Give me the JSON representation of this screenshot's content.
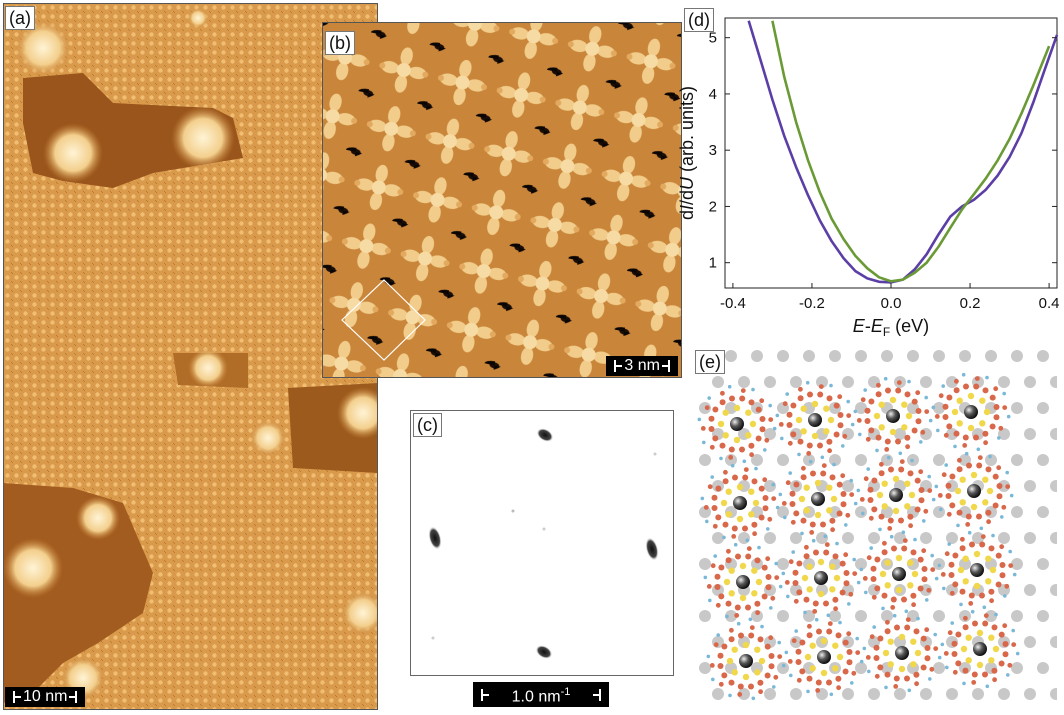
{
  "panels": {
    "a": {
      "label": "(a)",
      "scale": "10 nm"
    },
    "b": {
      "label": "(b)",
      "scale": "3 nm"
    },
    "c": {
      "label": "(c)",
      "scale": "1.0 nm",
      "scale_sup": "-1"
    },
    "d": {
      "label": "(d)"
    },
    "e": {
      "label": "(e)"
    }
  },
  "colors": {
    "stm_light": "#e7ac5c",
    "stm_mid": "#c98539",
    "stm_dark": "#8a4c16",
    "spot": "#1a1a1a",
    "curve_purple": "#5b3fa6",
    "curve_green": "#6a9a35",
    "atom_red": "#d9674a",
    "atom_yellow": "#f0d84a",
    "atom_grey": "#c8c8c8",
    "atom_blue": "#7ab8d8"
  },
  "chart_data": {
    "type": "line",
    "title": "",
    "xlabel_parts": [
      "E",
      "-",
      "E",
      "F",
      " (eV)"
    ],
    "ylabel_parts": [
      "d",
      "I",
      "/d",
      "U",
      " (arb. units)"
    ],
    "xlim": [
      -0.42,
      0.42
    ],
    "ylim": [
      0.55,
      5.35
    ],
    "xticks": [
      -0.4,
      -0.2,
      0.0,
      0.2,
      0.4
    ],
    "xtick_labels": [
      "-0.4",
      "-0.2",
      "0.0",
      "0.2",
      "0.4"
    ],
    "yticks": [
      1,
      2,
      3,
      4,
      5
    ],
    "ytick_labels": [
      "1",
      "2",
      "3",
      "4",
      "5"
    ],
    "series": [
      {
        "name": "purple",
        "x": [
          -0.36,
          -0.33,
          -0.3,
          -0.27,
          -0.24,
          -0.21,
          -0.18,
          -0.15,
          -0.12,
          -0.09,
          -0.06,
          -0.03,
          0.0,
          0.03,
          0.06,
          0.09,
          0.12,
          0.15,
          0.18,
          0.21,
          0.24,
          0.27,
          0.3,
          0.33,
          0.36,
          0.39,
          0.42
        ],
        "y": [
          5.3,
          4.6,
          3.9,
          3.25,
          2.7,
          2.2,
          1.75,
          1.38,
          1.08,
          0.85,
          0.72,
          0.66,
          0.65,
          0.7,
          0.88,
          1.15,
          1.5,
          1.82,
          2.0,
          2.12,
          2.3,
          2.55,
          2.88,
          3.3,
          3.85,
          4.45,
          5.05
        ]
      },
      {
        "name": "green",
        "x": [
          -0.3,
          -0.27,
          -0.24,
          -0.21,
          -0.18,
          -0.15,
          -0.12,
          -0.09,
          -0.06,
          -0.03,
          0.0,
          0.03,
          0.06,
          0.09,
          0.12,
          0.15,
          0.18,
          0.21,
          0.24,
          0.27,
          0.3,
          0.33,
          0.36,
          0.4
        ],
        "y": [
          5.3,
          4.3,
          3.5,
          2.82,
          2.25,
          1.78,
          1.42,
          1.12,
          0.9,
          0.74,
          0.67,
          0.7,
          0.82,
          1.0,
          1.28,
          1.62,
          1.95,
          2.22,
          2.5,
          2.82,
          3.2,
          3.65,
          4.15,
          4.85
        ]
      }
    ]
  }
}
